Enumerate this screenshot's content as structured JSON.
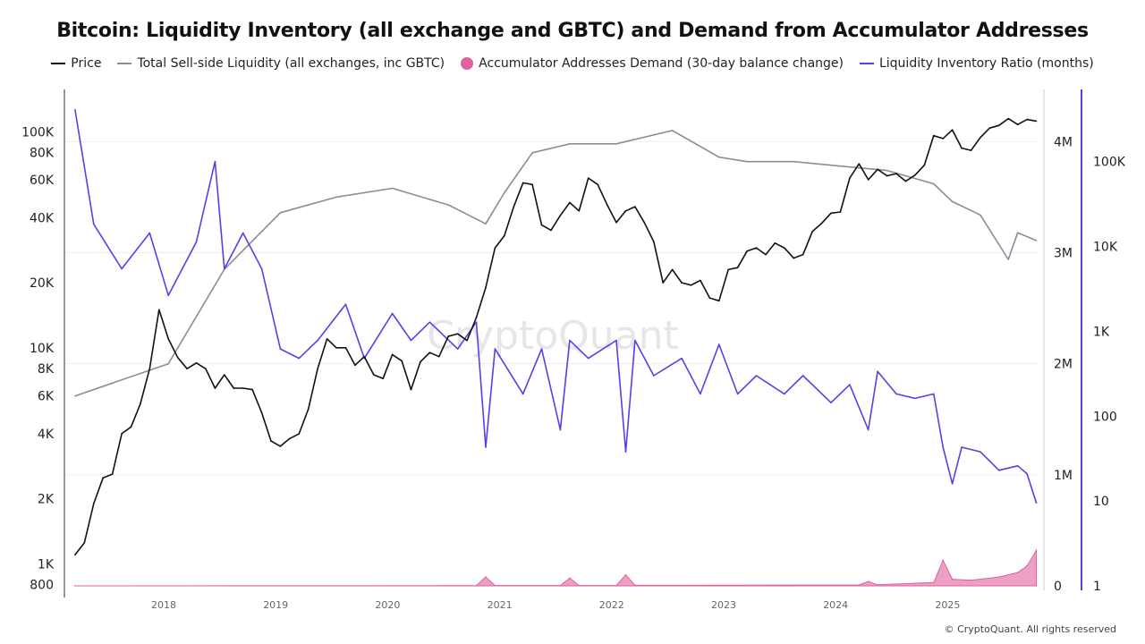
{
  "chart_data": {
    "type": "line",
    "title": "Bitcoin: Liquidity Inventory (all exchange and GBTC) and Demand from Accumulator Addresses",
    "legend_position": "top",
    "grid": true,
    "watermark": "CryptoQuant",
    "copyright": "© CryptoQuant. All rights reserved",
    "x_ticks": [
      "2018",
      "2019",
      "2020",
      "2021",
      "2022",
      "2023",
      "2024",
      "2025"
    ],
    "axes": {
      "price": {
        "scale": "log",
        "range": [
          790,
          157000
        ],
        "ticks": [
          {
            "v": 100000,
            "l": "100K"
          },
          {
            "v": 80000,
            "l": "80K"
          },
          {
            "v": 60000,
            "l": "60K"
          },
          {
            "v": 40000,
            "l": "40K"
          },
          {
            "v": 20000,
            "l": "20K"
          },
          {
            "v": 10000,
            "l": "10K"
          },
          {
            "v": 8000,
            "l": "8K"
          },
          {
            "v": 6000,
            "l": "6K"
          },
          {
            "v": 4000,
            "l": "4K"
          },
          {
            "v": 2000,
            "l": "2K"
          },
          {
            "v": 1000,
            "l": "1K"
          },
          {
            "v": 800,
            "l": "800"
          }
        ]
      },
      "liquidity": {
        "scale": "linear",
        "range": [
          0,
          4470000
        ],
        "ticks": [
          {
            "v": 0,
            "l": "0"
          },
          {
            "v": 1000000,
            "l": "1M"
          },
          {
            "v": 2000000,
            "l": "2M"
          },
          {
            "v": 3000000,
            "l": "3M"
          },
          {
            "v": 4000000,
            "l": "4M"
          }
        ]
      },
      "ratio": {
        "scale": "log",
        "range": [
          1,
          708000
        ],
        "ticks": [
          {
            "v": 1,
            "l": "1"
          },
          {
            "v": 10,
            "l": "10"
          },
          {
            "v": 100,
            "l": "100"
          },
          {
            "v": 1000,
            "l": "1K"
          },
          {
            "v": 10000,
            "l": "10K"
          },
          {
            "v": 100000,
            "l": "100K"
          }
        ]
      }
    },
    "series": [
      {
        "name": "Price",
        "axis": "price",
        "color": "#111111",
        "kind": "line",
        "x": [
          "2017-03",
          "2017-04",
          "2017-05",
          "2017-06",
          "2017-07",
          "2017-08",
          "2017-09",
          "2017-10",
          "2017-11",
          "2017-12",
          "2018-01",
          "2018-02",
          "2018-03",
          "2018-04",
          "2018-05",
          "2018-06",
          "2018-07",
          "2018-08",
          "2018-09",
          "2018-10",
          "2018-11",
          "2018-12",
          "2019-01",
          "2019-02",
          "2019-03",
          "2019-04",
          "2019-05",
          "2019-06",
          "2019-07",
          "2019-08",
          "2019-09",
          "2019-10",
          "2019-11",
          "2019-12",
          "2020-01",
          "2020-02",
          "2020-03",
          "2020-04",
          "2020-05",
          "2020-06",
          "2020-07",
          "2020-08",
          "2020-09",
          "2020-10",
          "2020-11",
          "2020-12",
          "2021-01",
          "2021-02",
          "2021-03",
          "2021-04",
          "2021-05",
          "2021-06",
          "2021-07",
          "2021-08",
          "2021-09",
          "2021-10",
          "2021-11",
          "2021-12",
          "2022-01",
          "2022-02",
          "2022-03",
          "2022-04",
          "2022-05",
          "2022-06",
          "2022-07",
          "2022-08",
          "2022-09",
          "2022-10",
          "2022-11",
          "2022-12",
          "2023-01",
          "2023-02",
          "2023-03",
          "2023-04",
          "2023-05",
          "2023-06",
          "2023-07",
          "2023-08",
          "2023-09",
          "2023-10",
          "2023-11",
          "2023-12",
          "2024-01",
          "2024-02",
          "2024-03",
          "2024-04",
          "2024-05",
          "2024-06",
          "2024-07",
          "2024-08",
          "2024-09",
          "2024-10",
          "2024-11",
          "2024-12",
          "2025-01",
          "2025-02",
          "2025-03",
          "2025-04",
          "2025-05",
          "2025-06",
          "2025-07",
          "2025-08",
          "2025-09",
          "2025-10"
        ],
        "values": [
          1100,
          1250,
          1900,
          2500,
          2600,
          4000,
          4300,
          5500,
          8000,
          15000,
          11000,
          9000,
          8000,
          8500,
          8000,
          6500,
          7500,
          6500,
          6500,
          6400,
          5000,
          3700,
          3500,
          3800,
          4000,
          5200,
          8000,
          11000,
          10000,
          10000,
          8300,
          9100,
          7500,
          7200,
          9300,
          8700,
          6400,
          8600,
          9500,
          9100,
          11300,
          11600,
          10800,
          13800,
          19000,
          29000,
          33000,
          45000,
          58000,
          57000,
          37000,
          35000,
          41000,
          47000,
          43000,
          61000,
          57000,
          46000,
          38000,
          43000,
          45000,
          38000,
          31000,
          20000,
          23000,
          20000,
          19500,
          20500,
          17000,
          16500,
          23000,
          23500,
          28000,
          29000,
          27000,
          30500,
          29000,
          26000,
          27000,
          34500,
          37700,
          42000,
          42500,
          61000,
          71000,
          60000,
          67000,
          62500,
          64000,
          59000,
          63000,
          70000,
          96000,
          93000,
          102000,
          84000,
          82000,
          94000,
          104000,
          107000,
          115000,
          108000,
          114000,
          112000
        ]
      },
      {
        "name": "Total Sell-side Liquidity (all exchanges, inc GBTC)",
        "axis": "liquidity",
        "color": "#8d8a99",
        "kind": "line",
        "x": [
          "2017-03",
          "2018-01",
          "2018-07",
          "2019-01",
          "2019-07",
          "2020-01",
          "2020-07",
          "2020-11",
          "2021-01",
          "2021-04",
          "2021-08",
          "2022-01",
          "2022-07",
          "2022-12",
          "2023-03",
          "2023-08",
          "2024-01",
          "2024-06",
          "2024-11",
          "2025-01",
          "2025-04",
          "2025-07",
          "2025-08",
          "2025-10"
        ],
        "values": [
          1710000,
          2000000,
          2850000,
          3360000,
          3500000,
          3580000,
          3430000,
          3260000,
          3540000,
          3900000,
          3980000,
          3980000,
          4100000,
          3860000,
          3820000,
          3820000,
          3780000,
          3740000,
          3620000,
          3460000,
          3340000,
          2940000,
          3180000,
          3110000
        ]
      },
      {
        "name": "Accumulator Addresses Demand (30-day balance change)",
        "axis": "liquidity",
        "color": "#e0619b",
        "kind": "area",
        "x": [
          "2017-03",
          "2020-10",
          "2020-11",
          "2020-12",
          "2021-07",
          "2021-08",
          "2021-09",
          "2022-01",
          "2022-02",
          "2022-03",
          "2024-03",
          "2024-04",
          "2024-05",
          "2024-11",
          "2024-12",
          "2025-01",
          "2025-03",
          "2025-06",
          "2025-08",
          "2025-09",
          "2025-10"
        ],
        "values": [
          0,
          2000,
          80000,
          3000,
          3000,
          70000,
          3000,
          3000,
          100000,
          5000,
          8000,
          40000,
          10000,
          30000,
          230000,
          60000,
          50000,
          80000,
          120000,
          180000,
          320000
        ]
      },
      {
        "name": "Liquidity Inventory Ratio (months)",
        "axis": "ratio",
        "color": "#5a3ee8",
        "kind": "line",
        "x": [
          "2017-03",
          "2017-05",
          "2017-08",
          "2017-11",
          "2018-01",
          "2018-04",
          "2018-06",
          "2018-07",
          "2018-09",
          "2018-11",
          "2019-01",
          "2019-03",
          "2019-05",
          "2019-08",
          "2019-10",
          "2020-01",
          "2020-03",
          "2020-05",
          "2020-08",
          "2020-10",
          "2020-11",
          "2020-12",
          "2021-03",
          "2021-05",
          "2021-07",
          "2021-08",
          "2021-10",
          "2022-01",
          "2022-02",
          "2022-03",
          "2022-05",
          "2022-08",
          "2022-10",
          "2022-12",
          "2023-02",
          "2023-04",
          "2023-07",
          "2023-09",
          "2023-12",
          "2024-02",
          "2024-04",
          "2024-05",
          "2024-07",
          "2024-09",
          "2024-11",
          "2024-12",
          "2025-01",
          "2025-02",
          "2025-04",
          "2025-06",
          "2025-08",
          "2025-09",
          "2025-10"
        ],
        "values": [
          408000,
          18300,
          5450,
          14400,
          2650,
          11300,
          100000,
          5450,
          14400,
          5450,
          620,
          480,
          780,
          2080,
          480,
          1620,
          780,
          1280,
          620,
          1280,
          43,
          620,
          183,
          620,
          69,
          780,
          480,
          780,
          38,
          780,
          300,
          480,
          183,
          700,
          183,
          300,
          183,
          300,
          144,
          235,
          69,
          336,
          183,
          162,
          183,
          43,
          16,
          43,
          38,
          23,
          26,
          21,
          9.5
        ]
      }
    ]
  }
}
